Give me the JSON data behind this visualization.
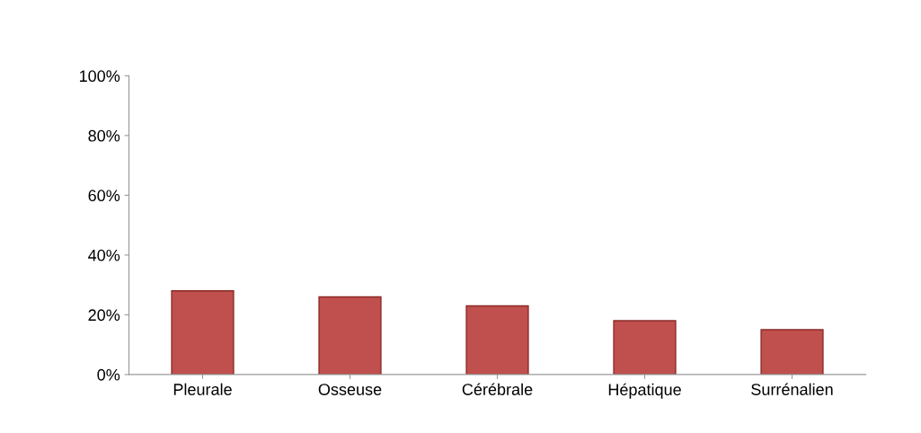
{
  "chart_data": {
    "type": "bar",
    "categories": [
      "Pleurale",
      "Osseuse",
      "Cérébrale",
      "Hépatique",
      "Surrénalien"
    ],
    "values": [
      28,
      26,
      23,
      18,
      15
    ],
    "color": "#c0504d",
    "ylim": [
      0,
      100
    ],
    "yticks": [
      {
        "value": 0,
        "label": "0%"
      },
      {
        "value": 20,
        "label": "20%"
      },
      {
        "value": 40,
        "label": "40%"
      },
      {
        "value": 60,
        "label": "60%"
      },
      {
        "value": 80,
        "label": "80%"
      },
      {
        "value": 100,
        "label": "100%"
      }
    ],
    "grid": false
  }
}
